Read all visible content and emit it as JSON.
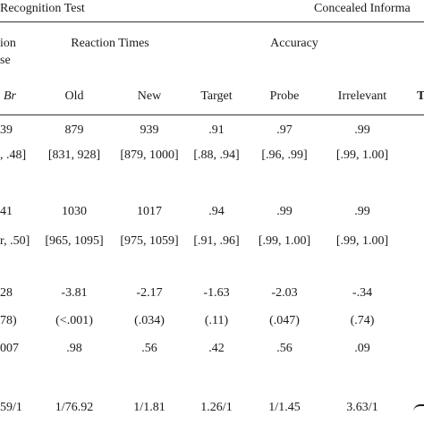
{
  "header": {
    "left_section": "Recognition Test",
    "right_section": "Concealed Informa",
    "clipped_left_line1": "ion",
    "clipped_left_line2": "se",
    "group_rt": "Reaction Times",
    "group_acc": "Accuracy"
  },
  "columns": {
    "c0": "Br",
    "c1": "Old",
    "c2": "New",
    "c3": "Target",
    "c4": "Probe",
    "c5": "Irrelevant",
    "c6": "T"
  },
  "rows": [
    {
      "c0": "39",
      "c1": "879",
      "c2": "939",
      "c3": ".91",
      "c4": ".97",
      "c5": ".99"
    },
    {
      "c0": ", .48]",
      "c1": "[831, 928]",
      "c2": "[879, 1000]",
      "c3": "[.88, .94]",
      "c4": "[.96, .99]",
      "c5": "[.99, 1.00]"
    },
    {
      "c0": "41",
      "c1": "1030",
      "c2": "1017",
      "c3": ".94",
      "c4": ".99",
      "c5": ".99"
    },
    {
      "c0": "r, .50]",
      "c1": "[965, 1095]",
      "c2": "[975, 1059]",
      "c3": "[.91, .96]",
      "c4": "[.99, 1.00]",
      "c5": "[.99, 1.00]"
    },
    {
      "c0": "28",
      "c1": "-3.81",
      "c2": "-2.17",
      "c3": "-1.63",
      "c4": "-2.03",
      "c5": "-.34"
    },
    {
      "c0": "78)",
      "c1": "(<.001)",
      "c2": "(.034)",
      "c3": "(.11)",
      "c4": "(.047)",
      "c5": "(.74)"
    },
    {
      "c0": "007",
      "c1": ".98",
      "c2": ".56",
      "c3": ".42",
      "c4": ".56",
      "c5": ".09"
    },
    {
      "c0": "59/1",
      "c1": "1/76.92",
      "c2": "1/1.81",
      "c3": "1.26/1",
      "c4": "1/1.45",
      "c5": "3.63/1"
    }
  ]
}
